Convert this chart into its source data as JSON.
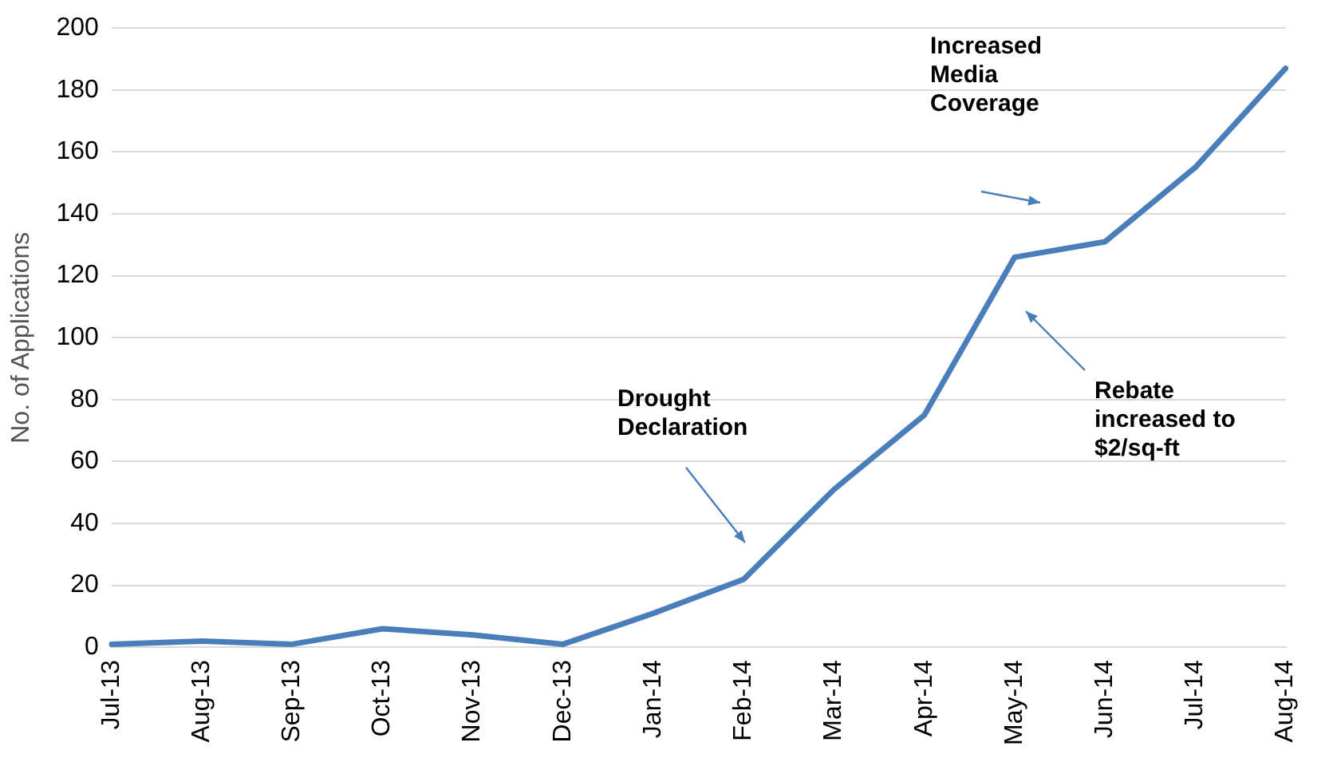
{
  "chart_data": {
    "type": "line",
    "ylabel": "No. of Applications",
    "categories": [
      "Jul-13",
      "Aug-13",
      "Sep-13",
      "Oct-13",
      "Nov-13",
      "Dec-13",
      "Jan-14",
      "Feb-14",
      "Mar-14",
      "Apr-14",
      "May-14",
      "Jun-14",
      "Jul-14",
      "Aug-14"
    ],
    "series": [
      {
        "color": "#4a7ebb",
        "values": [
          1,
          2,
          1,
          6,
          4,
          1,
          11,
          22,
          51,
          75,
          126,
          131,
          155,
          187
        ]
      }
    ],
    "ylim": [
      0,
      200
    ],
    "yticks": [
      0,
      20,
      40,
      60,
      80,
      100,
      120,
      140,
      160,
      180,
      200
    ],
    "grid": "y",
    "legend": false,
    "marker": "none",
    "line_style": "solid",
    "annotations": [
      "Drought\nDeclaration",
      "Rebate\nincreased to\n$2/sq-ft",
      "Increased\nMedia\nCoverage"
    ]
  }
}
